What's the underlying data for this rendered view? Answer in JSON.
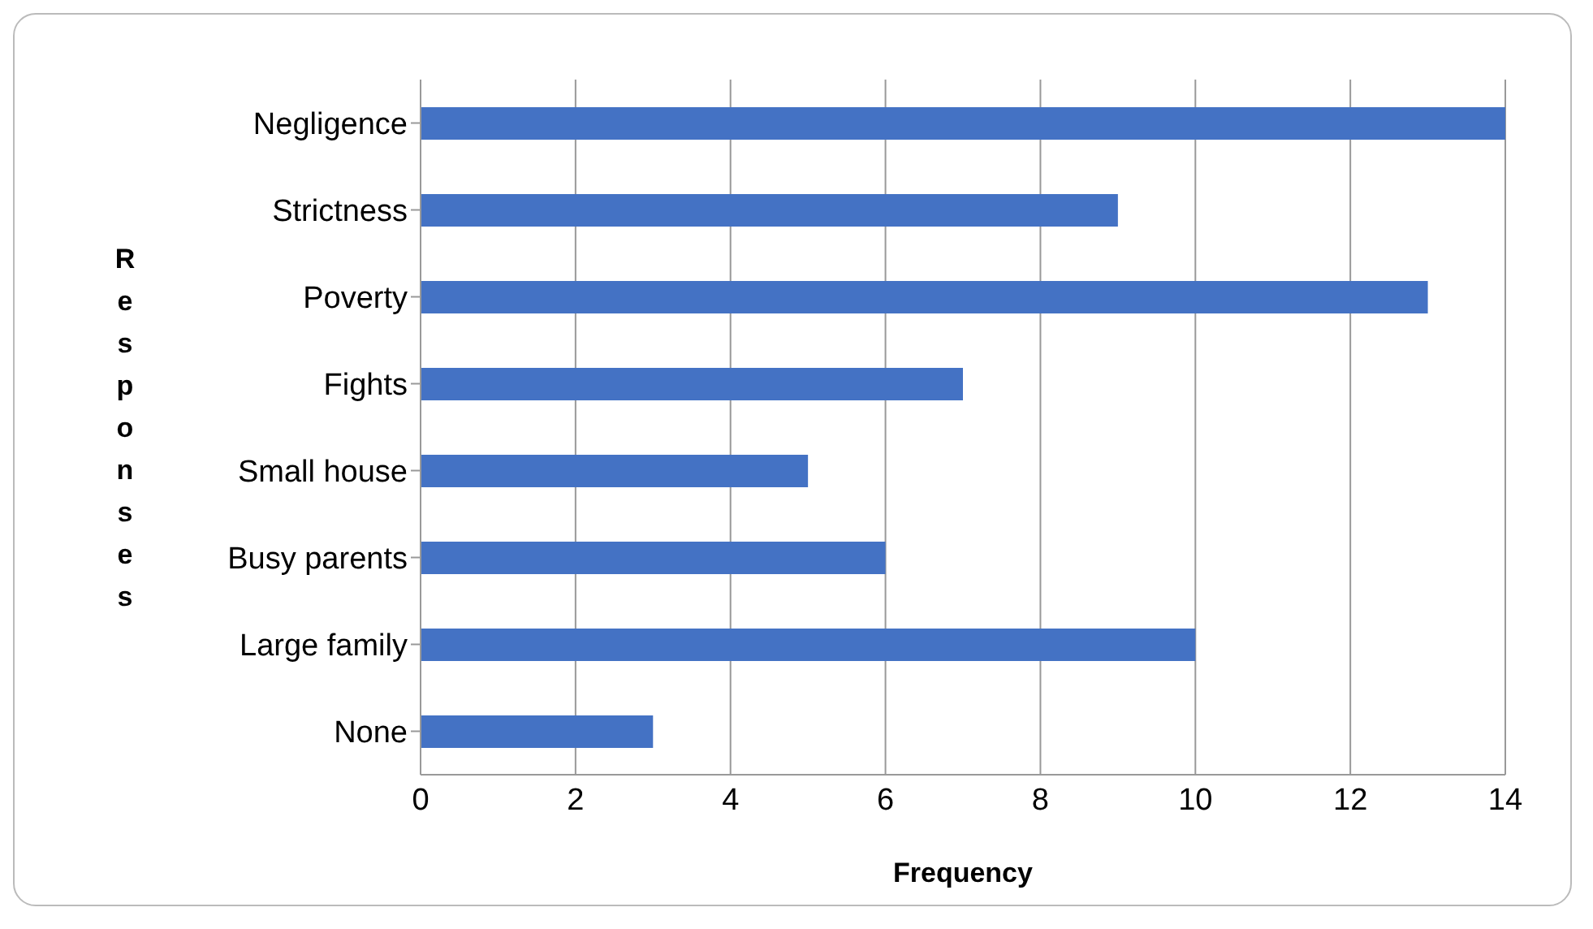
{
  "chart_data": {
    "type": "bar",
    "orientation": "horizontal",
    "xlabel": "Frequency",
    "ylabel": "Responses",
    "categories": [
      "Negligence",
      "Strictness",
      "Poverty",
      "Fights",
      "Small house",
      "Busy parents",
      "Large family",
      "None"
    ],
    "values": [
      14,
      9,
      13,
      7,
      5,
      6,
      10,
      3
    ],
    "color": "#4472c4",
    "xlim": [
      0,
      14
    ],
    "xticks": [
      0,
      2,
      4,
      6,
      8,
      10,
      12,
      14
    ],
    "grid": "x"
  }
}
